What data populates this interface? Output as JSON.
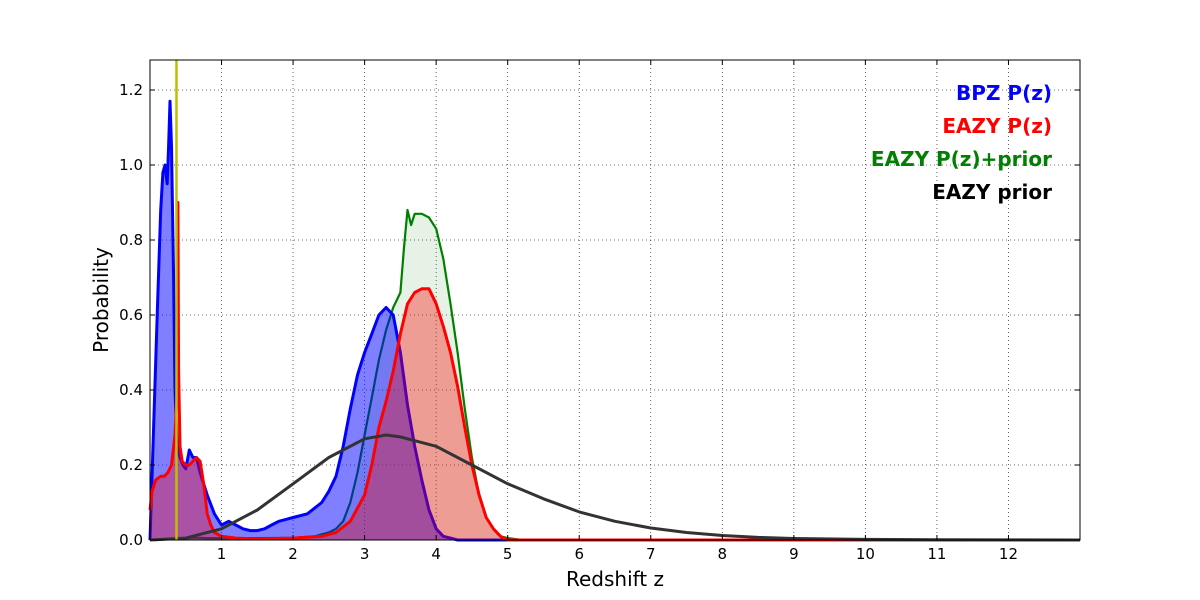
{
  "chart_data": {
    "type": "line",
    "title": "",
    "xlabel": "Redshift z",
    "ylabel": "Probability",
    "xlim": [
      0,
      13
    ],
    "ylim": [
      0,
      1.28
    ],
    "xticks": [
      1,
      2,
      3,
      4,
      5,
      6,
      7,
      8,
      9,
      10,
      11,
      12
    ],
    "yticks": [
      0.0,
      0.2,
      0.4,
      0.6,
      0.8,
      1.0,
      1.2
    ],
    "ytick_labels": [
      "0.0",
      "0.2",
      "0.4",
      "0.6",
      "0.8",
      "1.0",
      "1.2"
    ],
    "grid": true,
    "legend_position": "top-right",
    "vertical_line": {
      "x": 0.37,
      "color": "#bfbf00"
    },
    "series": [
      {
        "name": "BPZ P(z)",
        "color": "#0000ff",
        "filled": true,
        "x": [
          0.0,
          0.05,
          0.1,
          0.15,
          0.18,
          0.21,
          0.24,
          0.26,
          0.28,
          0.3,
          0.33,
          0.35,
          0.38,
          0.42,
          0.46,
          0.5,
          0.55,
          0.6,
          0.65,
          0.7,
          0.8,
          0.9,
          1.0,
          1.1,
          1.2,
          1.3,
          1.4,
          1.5,
          1.6,
          1.7,
          1.8,
          1.9,
          2.0,
          2.2,
          2.4,
          2.5,
          2.6,
          2.7,
          2.8,
          2.9,
          3.0,
          3.1,
          3.2,
          3.3,
          3.4,
          3.5,
          3.6,
          3.7,
          3.8,
          3.9,
          4.0,
          4.1,
          4.2,
          4.3,
          4.5,
          5.0,
          8.0,
          13.0
        ],
        "y": [
          0.0,
          0.3,
          0.6,
          0.88,
          0.98,
          1.0,
          0.95,
          1.05,
          1.17,
          1.05,
          0.7,
          0.4,
          0.25,
          0.22,
          0.2,
          0.19,
          0.24,
          0.22,
          0.22,
          0.18,
          0.12,
          0.07,
          0.04,
          0.05,
          0.04,
          0.03,
          0.025,
          0.025,
          0.03,
          0.04,
          0.05,
          0.055,
          0.06,
          0.07,
          0.1,
          0.13,
          0.17,
          0.25,
          0.35,
          0.44,
          0.5,
          0.55,
          0.6,
          0.62,
          0.6,
          0.5,
          0.36,
          0.25,
          0.16,
          0.08,
          0.03,
          0.01,
          0.005,
          0.0,
          0.0,
          0.0,
          0.0,
          0.0
        ]
      },
      {
        "name": "EAZY P(z)",
        "color": "#ff0000",
        "filled": true,
        "x": [
          0.0,
          0.03,
          0.08,
          0.15,
          0.2,
          0.25,
          0.3,
          0.35,
          0.38,
          0.39,
          0.4,
          0.42,
          0.45,
          0.5,
          0.55,
          0.6,
          0.65,
          0.7,
          0.75,
          0.8,
          0.85,
          0.9,
          1.0,
          1.2,
          1.5,
          2.0,
          2.4,
          2.6,
          2.8,
          3.0,
          3.1,
          3.2,
          3.3,
          3.4,
          3.5,
          3.6,
          3.7,
          3.8,
          3.9,
          4.0,
          4.1,
          4.2,
          4.3,
          4.4,
          4.5,
          4.6,
          4.7,
          4.8,
          4.9,
          5.0,
          5.5,
          13.0
        ],
        "y": [
          0.08,
          0.13,
          0.16,
          0.17,
          0.17,
          0.18,
          0.2,
          0.28,
          0.4,
          0.9,
          0.45,
          0.25,
          0.21,
          0.2,
          0.2,
          0.21,
          0.22,
          0.21,
          0.15,
          0.07,
          0.04,
          0.02,
          0.01,
          0.005,
          0.003,
          0.005,
          0.01,
          0.02,
          0.05,
          0.12,
          0.2,
          0.3,
          0.37,
          0.45,
          0.55,
          0.63,
          0.66,
          0.67,
          0.67,
          0.63,
          0.57,
          0.5,
          0.41,
          0.3,
          0.2,
          0.12,
          0.06,
          0.03,
          0.01,
          0.0,
          0.0,
          0.0
        ]
      },
      {
        "name": "EAZY P(z)+prior",
        "color": "#008000",
        "filled": true,
        "x": [
          0.0,
          0.1,
          0.2,
          0.3,
          0.35,
          0.4,
          0.5,
          0.6,
          0.7,
          0.8,
          1.0,
          1.5,
          2.0,
          2.3,
          2.5,
          2.6,
          2.7,
          2.8,
          2.9,
          3.0,
          3.1,
          3.2,
          3.3,
          3.4,
          3.5,
          3.55,
          3.6,
          3.65,
          3.7,
          3.8,
          3.9,
          4.0,
          4.1,
          4.2,
          4.3,
          4.4,
          4.5,
          4.6,
          4.7,
          4.8,
          4.9,
          5.0,
          5.2,
          13.0
        ],
        "y": [
          0.0,
          0.0,
          0.002,
          0.003,
          0.004,
          0.005,
          0.005,
          0.006,
          0.006,
          0.005,
          0.005,
          0.005,
          0.006,
          0.01,
          0.02,
          0.03,
          0.05,
          0.1,
          0.18,
          0.28,
          0.38,
          0.48,
          0.56,
          0.62,
          0.66,
          0.78,
          0.88,
          0.84,
          0.87,
          0.87,
          0.86,
          0.83,
          0.75,
          0.63,
          0.5,
          0.35,
          0.22,
          0.12,
          0.06,
          0.03,
          0.01,
          0.005,
          0.0,
          0.0
        ]
      },
      {
        "name": "EAZY prior",
        "color": "#333333",
        "filled": false,
        "x": [
          0.0,
          0.5,
          1.0,
          1.5,
          2.0,
          2.5,
          3.0,
          3.3,
          3.5,
          4.0,
          4.5,
          5.0,
          5.5,
          6.0,
          6.5,
          7.0,
          7.5,
          8.0,
          8.5,
          9.0,
          10.0,
          11.0,
          12.0,
          13.0
        ],
        "y": [
          0.0,
          0.005,
          0.03,
          0.08,
          0.15,
          0.22,
          0.27,
          0.28,
          0.275,
          0.25,
          0.2,
          0.15,
          0.11,
          0.075,
          0.05,
          0.032,
          0.02,
          0.012,
          0.007,
          0.004,
          0.0015,
          0.0005,
          0.0002,
          0.0
        ]
      }
    ]
  }
}
